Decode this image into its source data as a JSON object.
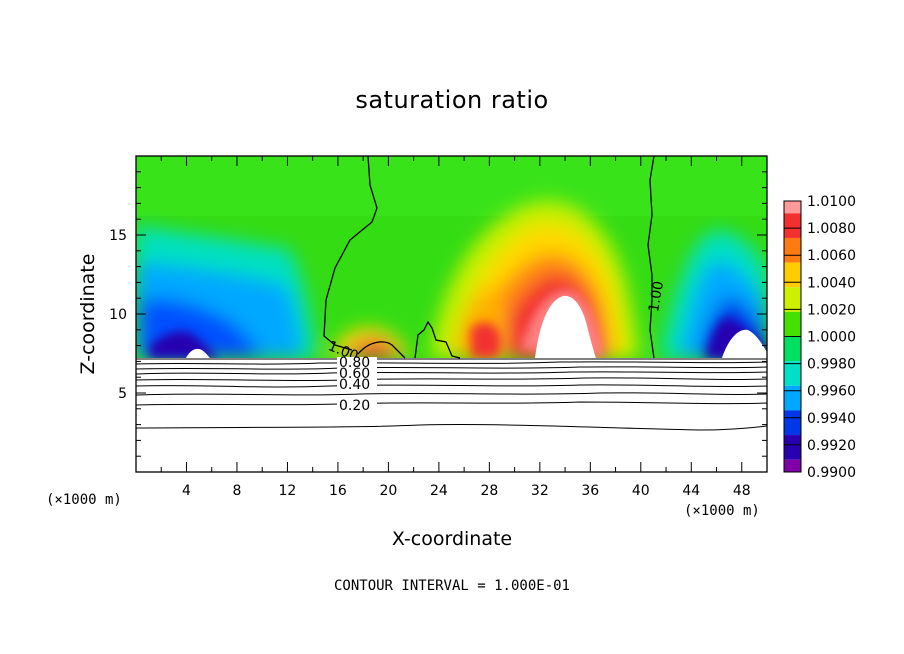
{
  "chart_data": {
    "type": "heatmap",
    "title": "saturation ratio",
    "xlabel": "X-coordinate",
    "ylabel": "Z-coordinate",
    "x_unit_label": "(×1000 m)",
    "xlim": [
      0,
      50
    ],
    "ylim": [
      0,
      20
    ],
    "x_ticks": [
      4,
      8,
      12,
      16,
      20,
      24,
      28,
      32,
      36,
      40,
      44,
      48
    ],
    "y_ticks": [
      5,
      10,
      15
    ],
    "footnote": "CONTOUR INTERVAL = 1.000E-01",
    "colorbar": {
      "ticks": [
        "1.0100",
        "1.0080",
        "1.0060",
        "1.0040",
        "1.0020",
        "1.0000",
        "0.9980",
        "0.9960",
        "0.9940",
        "0.9920",
        "0.9900"
      ],
      "colors": [
        "#ff9a9a",
        "#f23030",
        "#ff7a10",
        "#ffcc00",
        "#ccf000",
        "#44e000",
        "#00e060",
        "#00e0c8",
        "#00a8ff",
        "#0038e8",
        "#2800b0",
        "#8000a8"
      ]
    },
    "contour_labels": [
      "1.00",
      "1.00",
      "0.80",
      "0.60",
      "0.40",
      "0.20"
    ],
    "colors": {
      "low_sat": "#2a00c8",
      "high_sat": "#e01010",
      "ambient": "#30dc10"
    }
  }
}
